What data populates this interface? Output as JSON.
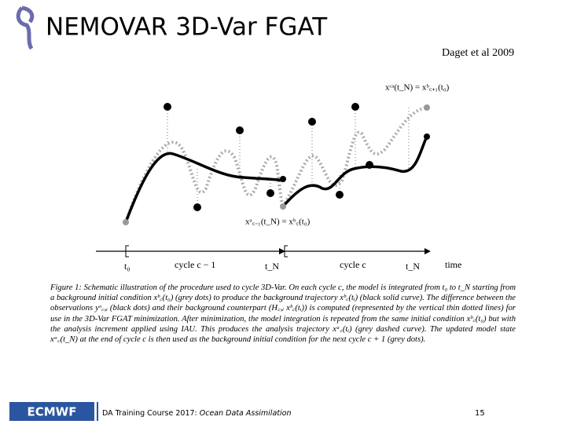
{
  "header": {
    "title": "NEMOVAR 3D-Var FGAT",
    "citation": "Daget et al 2009"
  },
  "diagram": {
    "label_top": "xᶜᵃ(t_N) = xᵇ꜀₊₁(t₀)",
    "label_mid": "xᵃ꜀₋₁(t_N) = xᵇ꜀(t₀)",
    "axis_labels": [
      "t₀",
      "cycle c − 1",
      "t_N",
      "cycle c",
      "t_N",
      "time"
    ]
  },
  "caption": "Figure 1: Schematic illustration of the procedure used to cycle 3D-Var. On each cycle c, the model is integrated from t₀ to t_N starting from a background initial condition xᵇ꜀(t₀) (grey dots) to produce the background trajectory xᵇ꜀(tᵢ) (black solid curve). The difference between the observations yᵒ꜀,ᵢ (black dots) and their background counterpart (H꜀,ᵢ xᵇ꜀(tᵢ)) is computed (represented by the vertical thin dotted lines) for use in the 3D-Var FGAT minimization. After minimization, the model integration is repeated from the same initial condition xᵇ꜀(t₀) but with the analysis increment applied using IAU. This produces the analysis trajectory xᵃ꜀(tᵢ) (grey dashed curve). The updated model state xᵃ꜀(t_N) at the end of cycle c is then used as the background initial condition for the next cycle c + 1 (grey dots).",
  "footer": {
    "logo": "ECMWF",
    "course": "DA Training Course 2017: ",
    "course_topic": "Ocean Data Assimilation",
    "page": "15"
  }
}
